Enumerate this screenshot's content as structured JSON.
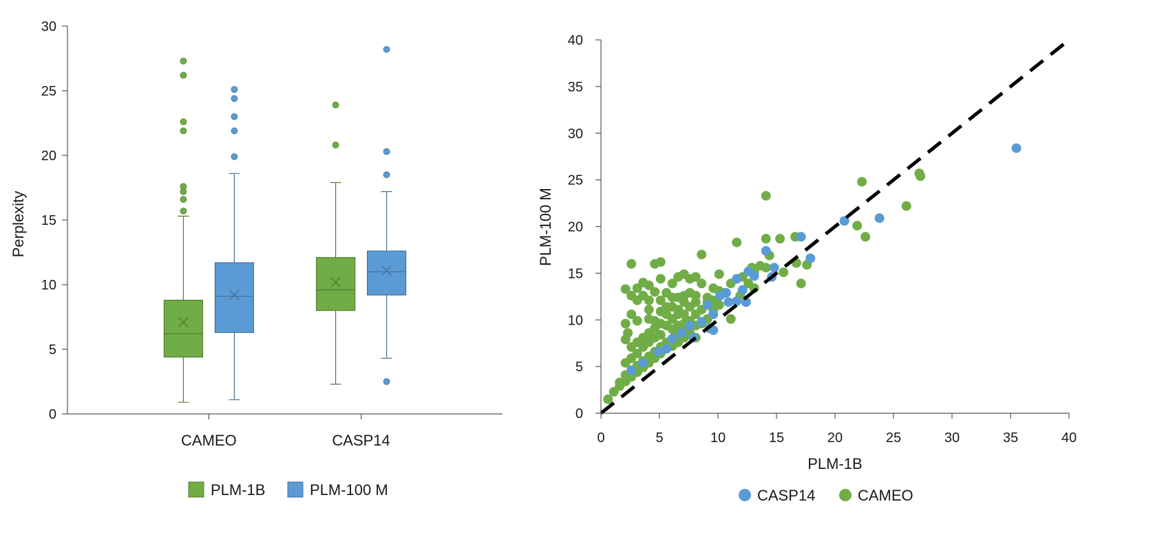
{
  "chart_data": [
    {
      "type": "box",
      "ylabel": "Perplexity",
      "xlabel": "",
      "ylim": [
        0,
        30
      ],
      "yticks": [
        0,
        5,
        10,
        15,
        20,
        25,
        30
      ],
      "categories": [
        "CAMEO",
        "CASP14"
      ],
      "legend": {
        "position": "bottom",
        "entries": [
          "PLM-1B",
          "PLM-100 M"
        ]
      },
      "colors": {
        "PLM-1B": "#70ad47",
        "PLM-100 M": "#5b9bd5"
      },
      "series": [
        {
          "name": "PLM-1B",
          "boxes": [
            {
              "category": "CAMEO",
              "whisker_low": 0.9,
              "q1": 4.4,
              "median": 6.2,
              "q3": 8.8,
              "whisker_high": 15.3,
              "mean": 7.1,
              "outliers": [
                15.7,
                16.6,
                17.2,
                17.6,
                21.9,
                22.6,
                26.2,
                27.3
              ]
            },
            {
              "category": "CASP14",
              "whisker_low": 2.3,
              "q1": 8.0,
              "median": 9.6,
              "q3": 12.1,
              "whisker_high": 17.9,
              "mean": 10.2,
              "outliers": [
                20.8,
                23.9
              ]
            }
          ]
        },
        {
          "name": "PLM-100 M",
          "boxes": [
            {
              "category": "CAMEO",
              "whisker_low": 1.1,
              "q1": 6.3,
              "median": 9.1,
              "q3": 11.7,
              "whisker_high": 18.6,
              "mean": 9.2,
              "outliers": [
                19.9,
                21.9,
                23.0,
                24.4,
                25.1
              ]
            },
            {
              "category": "CASP14",
              "whisker_low": 4.3,
              "q1": 9.2,
              "median": 11.0,
              "q3": 12.6,
              "whisker_high": 17.2,
              "mean": 11.1,
              "outliers": [
                2.5,
                18.5,
                20.3,
                28.2
              ]
            }
          ]
        }
      ]
    },
    {
      "type": "scatter",
      "xlabel": "PLM-1B",
      "ylabel": "PLM-100 M",
      "xlim": [
        0,
        40
      ],
      "ylim": [
        0,
        40
      ],
      "xticks": [
        0,
        5,
        10,
        15,
        20,
        25,
        30,
        35,
        40
      ],
      "yticks": [
        0,
        5,
        10,
        15,
        20,
        25,
        30,
        35,
        40
      ],
      "reference_line": {
        "style": "dashed",
        "color": "#000000",
        "from": [
          0,
          0
        ],
        "to": [
          40,
          40
        ]
      },
      "legend": {
        "position": "bottom",
        "entries": [
          "CASP14",
          "CAMEO"
        ]
      },
      "colors": {
        "CASP14": "#5b9bd5",
        "CAMEO": "#70ad47"
      },
      "series": [
        {
          "name": "CASP14",
          "points": [
            [
              35.5,
              28.4
            ],
            [
              23.8,
              20.9
            ],
            [
              20.8,
              20.6
            ],
            [
              17.9,
              16.6
            ],
            [
              17.1,
              18.9
            ],
            [
              14.1,
              17.4
            ],
            [
              14.8,
              15.6
            ],
            [
              14.6,
              14.6
            ],
            [
              13.1,
              14.7
            ],
            [
              12.6,
              15.2
            ],
            [
              12.4,
              11.9
            ],
            [
              11.6,
              14.4
            ],
            [
              12.1,
              13.2
            ],
            [
              10.7,
              12.9
            ],
            [
              10.9,
              11.9
            ],
            [
              10.2,
              12.6
            ],
            [
              9.6,
              10.6
            ],
            [
              9.1,
              11.6
            ],
            [
              8.6,
              9.8
            ],
            [
              9.3,
              9.1
            ],
            [
              7.6,
              9.4
            ],
            [
              7.9,
              8.1
            ],
            [
              6.9,
              8.6
            ],
            [
              6.1,
              8.0
            ],
            [
              5.6,
              6.9
            ],
            [
              4.9,
              6.6
            ],
            [
              3.6,
              5.4
            ],
            [
              2.6,
              4.6
            ],
            [
              11.6,
              12.0
            ],
            [
              9.6,
              8.9
            ]
          ]
        },
        {
          "name": "CAMEO",
          "points": [
            [
              27.2,
              25.7
            ],
            [
              27.3,
              25.4
            ],
            [
              26.1,
              22.2
            ],
            [
              22.3,
              24.8
            ],
            [
              22.6,
              18.9
            ],
            [
              21.9,
              20.1
            ],
            [
              14.1,
              23.3
            ],
            [
              17.1,
              13.9
            ],
            [
              17.6,
              15.9
            ],
            [
              16.6,
              18.9
            ],
            [
              16.7,
              16.1
            ],
            [
              15.6,
              15.1
            ],
            [
              15.3,
              18.7
            ],
            [
              14.4,
              16.9
            ],
            [
              14.1,
              18.7
            ],
            [
              13.6,
              15.8
            ],
            [
              12.9,
              15.6
            ],
            [
              11.6,
              18.3
            ],
            [
              13.1,
              13.4
            ],
            [
              12.6,
              13.9
            ],
            [
              11.9,
              12.6
            ],
            [
              11.1,
              10.1
            ],
            [
              10.6,
              12.9
            ],
            [
              10.1,
              14.9
            ],
            [
              9.6,
              13.4
            ],
            [
              9.1,
              11.9
            ],
            [
              8.6,
              17.0
            ],
            [
              8.6,
              13.9
            ],
            [
              8.1,
              14.6
            ],
            [
              8.1,
              11.9
            ],
            [
              7.6,
              14.4
            ],
            [
              7.6,
              12.9
            ],
            [
              7.1,
              14.9
            ],
            [
              7.1,
              11.9
            ],
            [
              6.6,
              14.6
            ],
            [
              6.6,
              12.4
            ],
            [
              6.1,
              13.9
            ],
            [
              6.1,
              11.4
            ],
            [
              5.6,
              12.9
            ],
            [
              5.6,
              11.4
            ],
            [
              5.1,
              16.2
            ],
            [
              5.1,
              14.4
            ],
            [
              5.1,
              12.1
            ],
            [
              4.6,
              16.0
            ],
            [
              4.6,
              13.0
            ],
            [
              4.1,
              13.7
            ],
            [
              4.1,
              12.1
            ],
            [
              3.6,
              14.0
            ],
            [
              3.6,
              12.6
            ],
            [
              3.1,
              13.4
            ],
            [
              3.1,
              12.1
            ],
            [
              2.6,
              16.0
            ],
            [
              2.6,
              12.6
            ],
            [
              2.1,
              13.3
            ],
            [
              2.6,
              10.6
            ],
            [
              2.1,
              9.6
            ],
            [
              2.3,
              8.6
            ],
            [
              2.1,
              7.9
            ],
            [
              2.6,
              7.1
            ],
            [
              3.1,
              7.6
            ],
            [
              3.6,
              8.1
            ],
            [
              4.1,
              8.6
            ],
            [
              4.6,
              9.1
            ],
            [
              5.1,
              9.6
            ],
            [
              5.6,
              10.6
            ],
            [
              6.1,
              10.1
            ],
            [
              6.6,
              10.6
            ],
            [
              7.1,
              9.6
            ],
            [
              7.6,
              9.9
            ],
            [
              8.1,
              10.6
            ],
            [
              8.6,
              9.6
            ],
            [
              9.1,
              10.1
            ],
            [
              9.6,
              11.1
            ],
            [
              10.1,
              11.6
            ],
            [
              8.1,
              8.1
            ],
            [
              7.6,
              8.6
            ],
            [
              7.1,
              8.1
            ],
            [
              6.6,
              7.6
            ],
            [
              6.1,
              7.9
            ],
            [
              5.6,
              7.6
            ],
            [
              5.1,
              7.1
            ],
            [
              4.6,
              6.6
            ],
            [
              4.1,
              6.1
            ],
            [
              3.6,
              5.6
            ],
            [
              3.1,
              5.1
            ],
            [
              2.6,
              4.6
            ],
            [
              2.1,
              4.1
            ],
            [
              1.6,
              3.3
            ],
            [
              1.1,
              2.3
            ],
            [
              0.6,
              1.5
            ],
            [
              1.6,
              2.9
            ],
            [
              2.1,
              3.4
            ],
            [
              2.6,
              3.9
            ],
            [
              3.1,
              4.4
            ],
            [
              3.6,
              4.9
            ],
            [
              4.1,
              5.4
            ],
            [
              4.6,
              5.9
            ],
            [
              5.1,
              6.4
            ],
            [
              5.6,
              6.9
            ],
            [
              6.1,
              7.2
            ],
            [
              6.6,
              8.4
            ],
            [
              7.1,
              8.9
            ],
            [
              7.6,
              9.1
            ],
            [
              8.1,
              9.4
            ],
            [
              8.6,
              11.1
            ],
            [
              9.1,
              12.4
            ],
            [
              9.6,
              12.1
            ],
            [
              10.1,
              13.1
            ],
            [
              11.1,
              13.9
            ],
            [
              12.1,
              14.6
            ],
            [
              13.1,
              15.1
            ],
            [
              14.1,
              15.6
            ],
            [
              4.1,
              11.1
            ],
            [
              4.6,
              9.9
            ],
            [
              5.1,
              8.4
            ],
            [
              5.6,
              9.4
            ],
            [
              6.1,
              9.0
            ],
            [
              6.6,
              9.4
            ],
            [
              7.1,
              10.6
            ],
            [
              7.6,
              11.4
            ],
            [
              8.1,
              12.6
            ],
            [
              3.1,
              6.4
            ],
            [
              3.6,
              7.1
            ],
            [
              4.1,
              7.6
            ],
            [
              4.6,
              8.1
            ],
            [
              2.1,
              5.4
            ],
            [
              2.6,
              5.9
            ],
            [
              3.1,
              4.8
            ],
            [
              5.1,
              10.9
            ],
            [
              6.1,
              12.4
            ],
            [
              6.6,
              11.1
            ],
            [
              7.1,
              12.6
            ],
            [
              3.1,
              9.9
            ],
            [
              4.1,
              10.1
            ]
          ]
        }
      ]
    }
  ]
}
